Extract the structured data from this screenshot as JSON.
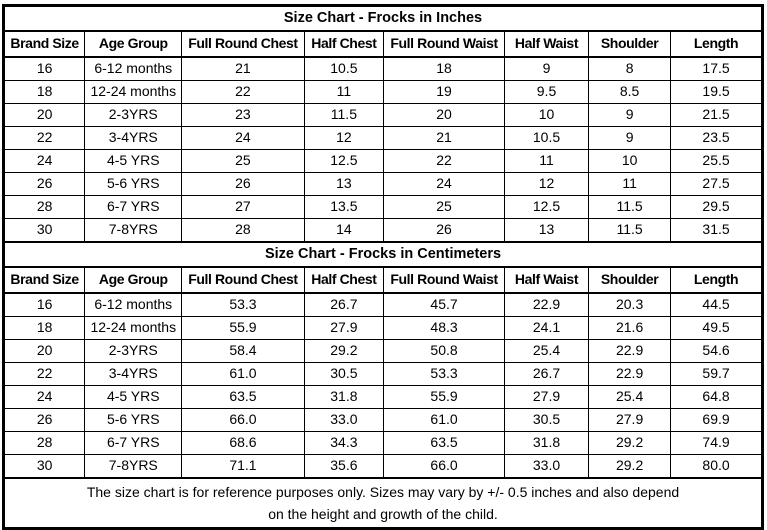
{
  "columns": [
    "Brand Size",
    "Age Group",
    "Full Round Chest",
    "Half Chest",
    "Full Round Waist",
    "Half Waist",
    "Shoulder",
    "Length"
  ],
  "sections": [
    {
      "title": "Size Chart - Frocks in Inches",
      "rows": [
        [
          "16",
          "6-12 months",
          "21",
          "10.5",
          "18",
          "9",
          "8",
          "17.5"
        ],
        [
          "18",
          "12-24 months",
          "22",
          "11",
          "19",
          "9.5",
          "8.5",
          "19.5"
        ],
        [
          "20",
          "2-3YRS",
          "23",
          "11.5",
          "20",
          "10",
          "9",
          "21.5"
        ],
        [
          "22",
          "3-4YRS",
          "24",
          "12",
          "21",
          "10.5",
          "9",
          "23.5"
        ],
        [
          "24",
          "4-5 YRS",
          "25",
          "12.5",
          "22",
          "11",
          "10",
          "25.5"
        ],
        [
          "26",
          "5-6 YRS",
          "26",
          "13",
          "24",
          "12",
          "11",
          "27.5"
        ],
        [
          "28",
          "6-7 YRS",
          "27",
          "13.5",
          "25",
          "12.5",
          "11.5",
          "29.5"
        ],
        [
          "30",
          "7-8YRS",
          "28",
          "14",
          "26",
          "13",
          "11.5",
          "31.5"
        ]
      ]
    },
    {
      "title": "Size Chart - Frocks in Centimeters",
      "rows": [
        [
          "16",
          "6-12 months",
          "53.3",
          "26.7",
          "45.7",
          "22.9",
          "20.3",
          "44.5"
        ],
        [
          "18",
          "12-24 months",
          "55.9",
          "27.9",
          "48.3",
          "24.1",
          "21.6",
          "49.5"
        ],
        [
          "20",
          "2-3YRS",
          "58.4",
          "29.2",
          "50.8",
          "25.4",
          "22.9",
          "54.6"
        ],
        [
          "22",
          "3-4YRS",
          "61.0",
          "30.5",
          "53.3",
          "26.7",
          "22.9",
          "59.7"
        ],
        [
          "24",
          "4-5 YRS",
          "63.5",
          "31.8",
          "55.9",
          "27.9",
          "25.4",
          "64.8"
        ],
        [
          "26",
          "5-6 YRS",
          "66.0",
          "33.0",
          "61.0",
          "30.5",
          "27.9",
          "69.9"
        ],
        [
          "28",
          "6-7 YRS",
          "68.6",
          "34.3",
          "63.5",
          "31.8",
          "29.2",
          "74.9"
        ],
        [
          "30",
          "7-8YRS",
          "71.1",
          "35.6",
          "66.0",
          "33.0",
          "29.2",
          "80.0"
        ]
      ]
    }
  ],
  "footer": {
    "line1": "The size chart is for reference purposes only. Sizes may vary by +/- 0.5 inches and also depend",
    "line2": "on the height and growth of the child."
  },
  "colors": {
    "border": "#000000",
    "background": "#ffffff",
    "text": "#000000"
  }
}
